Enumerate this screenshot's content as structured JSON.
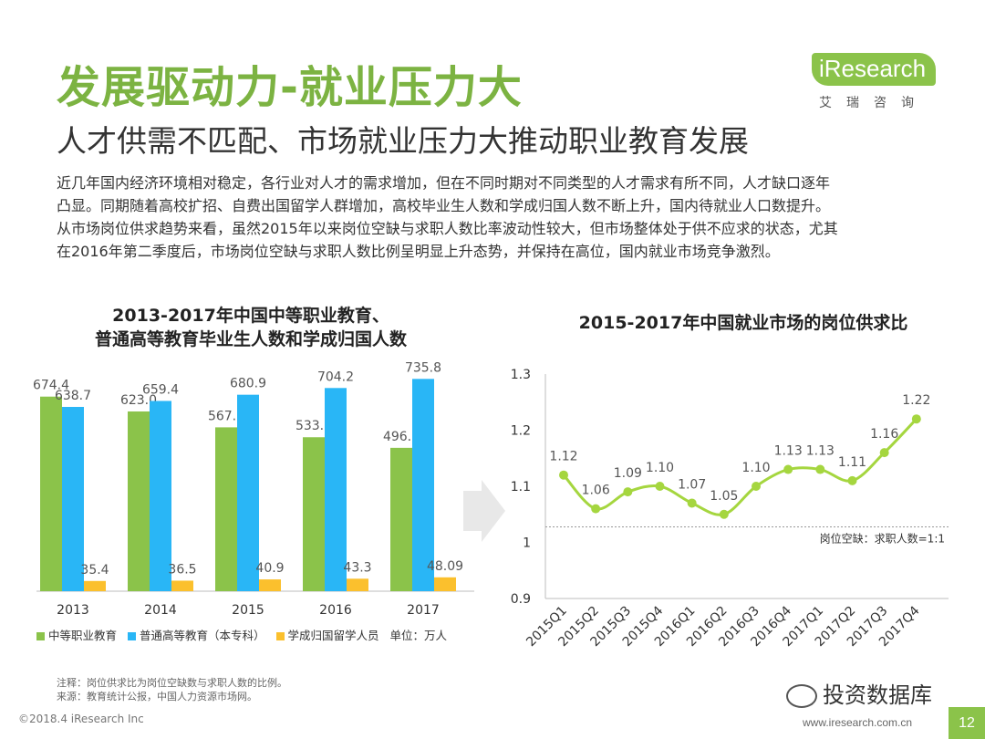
{
  "header": {
    "title": "发展驱动力-就业压力大",
    "subtitle": "人才供需不匹配、市场就业压力大推动职业教育发展"
  },
  "logo": {
    "text": "iResearch",
    "sub": "艾瑞咨询"
  },
  "paragraph": {
    "lines": [
      "近几年国内经济环境相对稳定，各行业对人才的需求增加，但在不同时期对不同类型的人才需求有所不同，人才缺口逐年",
      "凸显。同期随着高校扩招、自费出国留学人群增加，高校毕业生人数和学成归国人数不断上升，国内待就业人口数提升。",
      "从市场岗位供求趋势来看，虽然2015年以来岗位空缺与求职人数比率波动性较大，但市场整体处于供不应求的状态，尤其",
      "在2016年第二季度后，市场岗位空缺与求职人数比例呈明显上升态势，并保持在高位，国内就业市场竞争激烈。"
    ]
  },
  "colors": {
    "green": "#8bc34a",
    "blue": "#29b6f6",
    "yellow": "#fbc02d",
    "title_green": "#7cb342",
    "line_green": "#a5d63f",
    "arrow": "#e8e8e8"
  },
  "chart_data": [
    {
      "type": "bar",
      "title_line1": "2013-2017年中国中等职业教育、",
      "title_line2": "普通高等教育毕业生人数和学成归国人数",
      "categories": [
        "2013",
        "2014",
        "2015",
        "2016",
        "2017"
      ],
      "series": [
        {
          "name": "中等职业教育",
          "values": [
            674.4,
            623.0,
            567.9,
            533.6,
            496.9
          ],
          "labels": [
            "674.4",
            "623.0",
            "567.9",
            "533.6",
            "496.9"
          ]
        },
        {
          "name": "普通高等教育（本专科）",
          "values": [
            638.7,
            659.4,
            680.9,
            704.2,
            735.8
          ],
          "labels": [
            "638.7",
            "659.4",
            "680.9",
            "704.2",
            "735.8"
          ]
        },
        {
          "name": "学成归国留学人员",
          "values": [
            35.4,
            36.5,
            40.9,
            43.3,
            48.09
          ],
          "labels": [
            "35.4",
            "36.5",
            "40.9",
            "43.3",
            "48.09"
          ]
        }
      ],
      "unit_label": "单位：万人",
      "ylim": [
        0,
        800
      ],
      "grid": false,
      "legend": "bottom"
    },
    {
      "type": "line",
      "title": "2015-2017年中国就业市场的岗位供求比",
      "categories": [
        "2015Q1",
        "2015Q2",
        "2015Q3",
        "2015Q4",
        "2016Q1",
        "2016Q2",
        "2016Q3",
        "2016Q4",
        "2017Q1",
        "2017Q2",
        "2017Q3",
        "2017Q4"
      ],
      "values": [
        1.12,
        1.06,
        1.09,
        1.1,
        1.07,
        1.05,
        1.1,
        1.13,
        1.13,
        1.11,
        1.16,
        1.22
      ],
      "labels": [
        "1.12",
        "1.06",
        "1.09",
        "1.10",
        "1.07",
        "1.05",
        "1.10",
        "1.13",
        "1.13",
        "1.11",
        "1.16",
        "1.22"
      ],
      "yticks": [
        "0.9",
        "1",
        "1.1",
        "1.2",
        "1.3"
      ],
      "ylim": [
        0.9,
        1.3
      ],
      "reference_line": {
        "value": 1.0,
        "label": "岗位空缺：求职人数=1:1"
      },
      "grid": false
    }
  ],
  "notes": {
    "line1": "注释：岗位供求比为岗位空缺数与求职人数的比例。",
    "line2": "来源：教育统计公报，中国人力资源市场网。"
  },
  "footer": {
    "left": "©2018.4 iResearch Inc",
    "url": "www.iresearch.com.cn",
    "page": "12",
    "watermark": "投资数据库"
  }
}
